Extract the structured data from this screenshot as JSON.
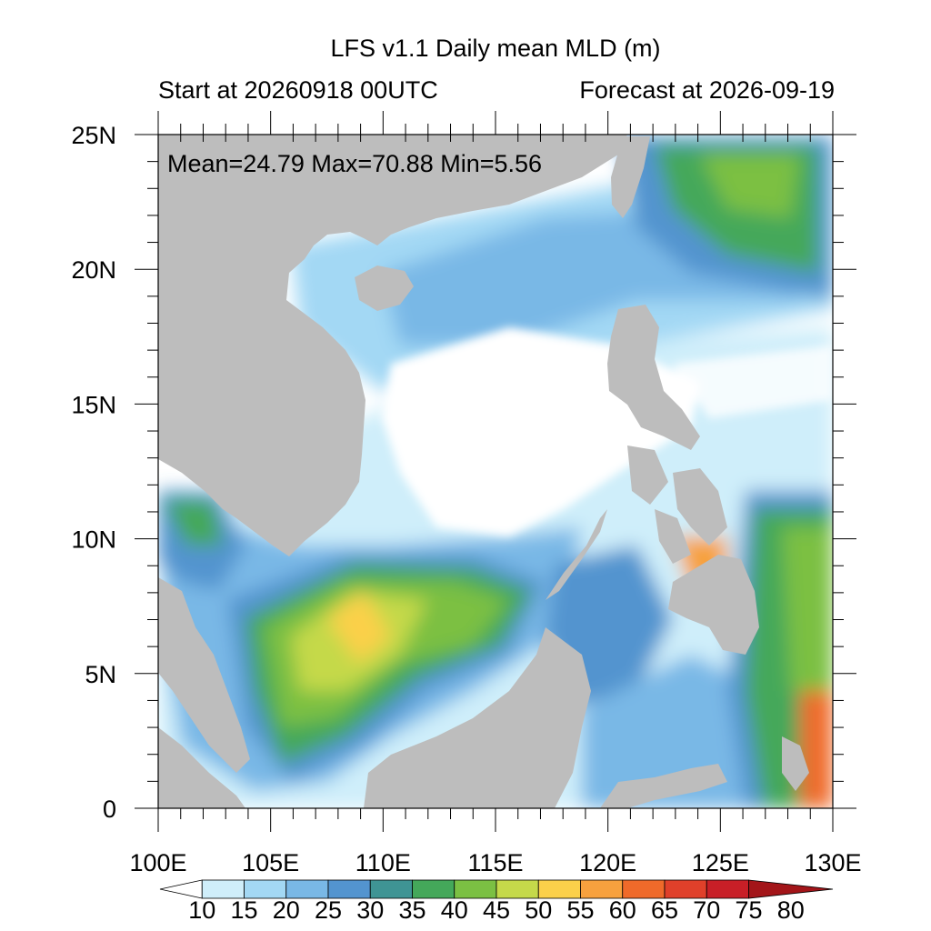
{
  "title": "LFS v1.1 Daily mean MLD (m)",
  "left_subtitle": "Start at 20260918 00UTC",
  "right_subtitle": "Forecast at 2026-09-19",
  "stats_text": "Mean=24.79  Max=70.88  Min=5.56",
  "map": {
    "lon_range": [
      100,
      130
    ],
    "lat_range": [
      0,
      25
    ],
    "x_ticks": [
      "100E",
      "105E",
      "110E",
      "115E",
      "120E",
      "125E",
      "130E"
    ],
    "y_ticks": [
      "0",
      "5N",
      "10N",
      "15N",
      "20N",
      "25N"
    ],
    "land_color": "#bdbdbd",
    "ocean_base_color": "#ffffff"
  },
  "colorbar": {
    "labels": [
      "10",
      "15",
      "20",
      "25",
      "30",
      "35",
      "40",
      "45",
      "50",
      "55",
      "60",
      "65",
      "70",
      "75",
      "80"
    ],
    "colors": [
      "#ffffff",
      "#cfeefa",
      "#a3d8f4",
      "#79b8e6",
      "#5394cf",
      "#3f9494",
      "#44a85a",
      "#7bc043",
      "#c5d94a",
      "#fbd04a",
      "#f7a13e",
      "#ef6a2a",
      "#e0402a",
      "#c81f27",
      "#a31519"
    ]
  }
}
